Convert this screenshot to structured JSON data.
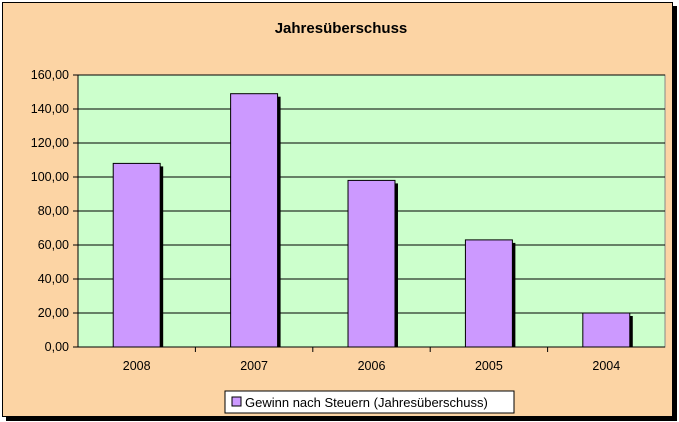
{
  "chart_data": {
    "type": "bar",
    "title": "Jahresüberschuss",
    "categories": [
      "2008",
      "2007",
      "2006",
      "2005",
      "2004"
    ],
    "series": [
      {
        "name": "Gewinn nach Steuern (Jahresüberschuss)",
        "values": [
          108,
          149,
          98,
          63,
          20
        ],
        "color": "#cc99ff"
      }
    ],
    "y_ticks": [
      "0,00",
      "20,00",
      "40,00",
      "60,00",
      "80,00",
      "100,00",
      "120,00",
      "140,00",
      "160,00"
    ],
    "ylim": [
      0,
      160
    ],
    "grid": true,
    "legend_position": "bottom",
    "colors": {
      "background": "#fcd4a4",
      "plot_area": "#ccffcc",
      "bar": "#cc99ff",
      "bar_shadow": "#000000"
    }
  }
}
